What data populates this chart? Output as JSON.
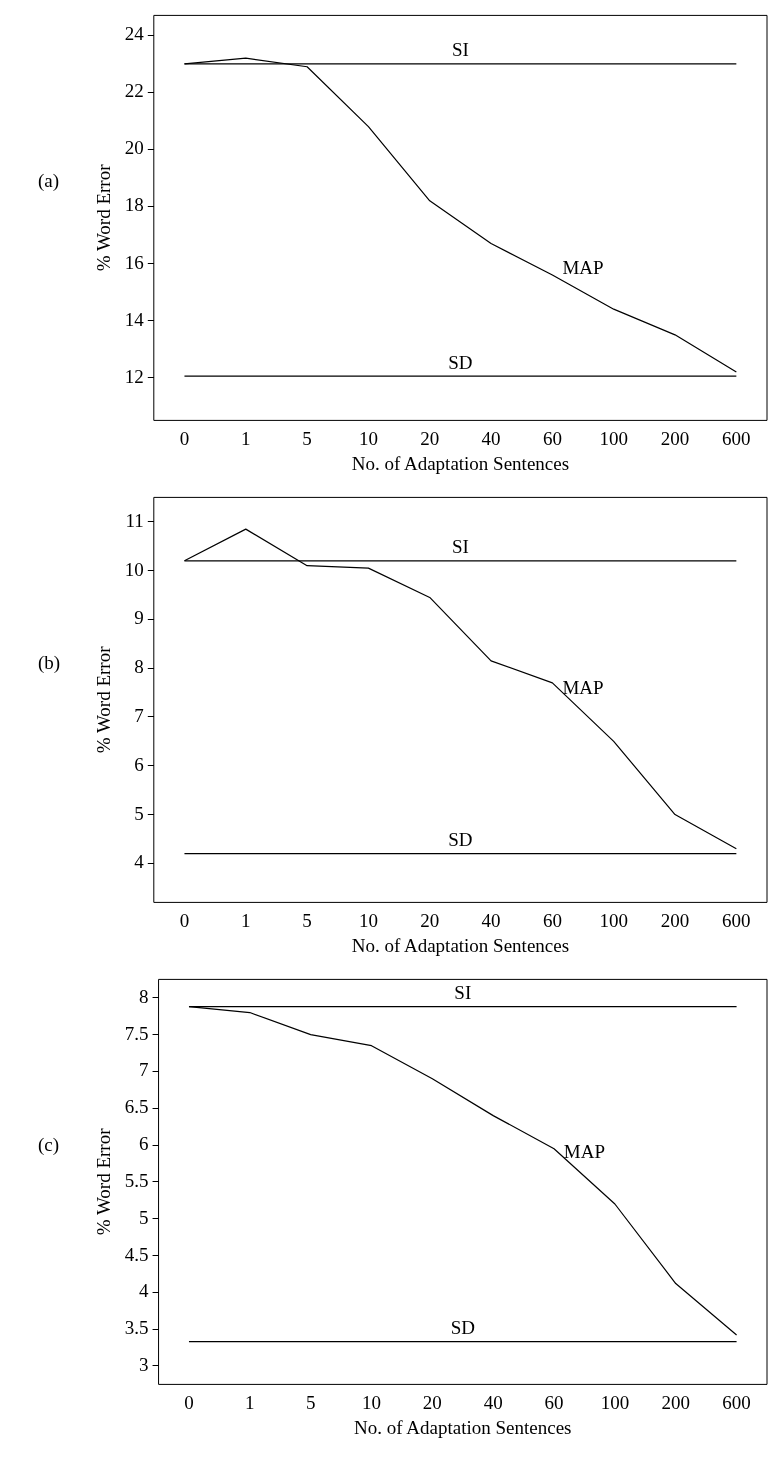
{
  "chart_data": [
    {
      "type": "line",
      "annotations": [
        "(a)"
      ],
      "xlabel": "No. of Adaptation Sentences",
      "ylabel": "% Word Error",
      "categories": [
        "0",
        "1",
        "5",
        "10",
        "20",
        "40",
        "60",
        "100",
        "200",
        "600"
      ],
      "ylim": [
        10.5,
        24.7
      ],
      "yticks": [
        12,
        14,
        16,
        18,
        20,
        22,
        24
      ],
      "grid": false,
      "legend": false,
      "series": [
        {
          "name": "SI",
          "color": "#000000",
          "values": [
            23.0,
            23.0,
            23.0,
            23.0,
            23.0,
            23.0,
            23.0,
            23.0,
            23.0,
            23.0
          ]
        },
        {
          "name": "MAP",
          "color": "#000000",
          "values": [
            23.0,
            23.2,
            22.9,
            20.8,
            18.2,
            16.7,
            15.6,
            14.4,
            13.5,
            12.2
          ]
        },
        {
          "name": "SD",
          "color": "#000000",
          "values": [
            12.05,
            12.05,
            12.05,
            12.05,
            12.05,
            12.05,
            12.05,
            12.05,
            12.05,
            12.05
          ]
        }
      ]
    },
    {
      "type": "line",
      "annotations": [
        "(b)"
      ],
      "xlabel": "No. of Adaptation Sentences",
      "ylabel": "% Word Error",
      "categories": [
        "0",
        "1",
        "5",
        "10",
        "20",
        "40",
        "60",
        "100",
        "200",
        "600"
      ],
      "ylim": [
        3.2,
        11.5
      ],
      "yticks": [
        4,
        5,
        6,
        7,
        8,
        9,
        10,
        11
      ],
      "grid": false,
      "legend": false,
      "series": [
        {
          "name": "SI",
          "color": "#000000",
          "values": [
            10.2,
            10.2,
            10.2,
            10.2,
            10.2,
            10.2,
            10.2,
            10.2,
            10.2,
            10.2
          ]
        },
        {
          "name": "MAP",
          "color": "#000000",
          "values": [
            10.2,
            10.85,
            10.1,
            10.05,
            9.45,
            8.15,
            7.7,
            6.5,
            5.0,
            4.3
          ]
        },
        {
          "name": "SD",
          "color": "#000000",
          "values": [
            4.2,
            4.2,
            4.2,
            4.2,
            4.2,
            4.2,
            4.2,
            4.2,
            4.2,
            4.2
          ]
        }
      ]
    },
    {
      "type": "line",
      "annotations": [
        "(c)"
      ],
      "xlabel": "No. of Adaptation Sentences",
      "ylabel": "% Word Error",
      "categories": [
        "0",
        "1",
        "5",
        "10",
        "20",
        "40",
        "60",
        "100",
        "200",
        "600"
      ],
      "ylim": [
        2.75,
        8.25
      ],
      "yticks": [
        3,
        3.5,
        4,
        4.5,
        5,
        5.5,
        6,
        6.5,
        7,
        7.5,
        8
      ],
      "grid": false,
      "legend": false,
      "series": [
        {
          "name": "SI",
          "color": "#000000",
          "values": [
            7.88,
            7.88,
            7.88,
            7.88,
            7.88,
            7.88,
            7.88,
            7.88,
            7.88,
            7.88
          ]
        },
        {
          "name": "MAP",
          "color": "#000000",
          "values": [
            7.88,
            7.8,
            7.5,
            7.35,
            6.9,
            6.4,
            5.95,
            5.2,
            4.12,
            3.42
          ]
        },
        {
          "name": "SD",
          "color": "#000000",
          "values": [
            3.33,
            3.33,
            3.33,
            3.33,
            3.33,
            3.33,
            3.33,
            3.33,
            3.33,
            3.33
          ]
        }
      ]
    }
  ]
}
